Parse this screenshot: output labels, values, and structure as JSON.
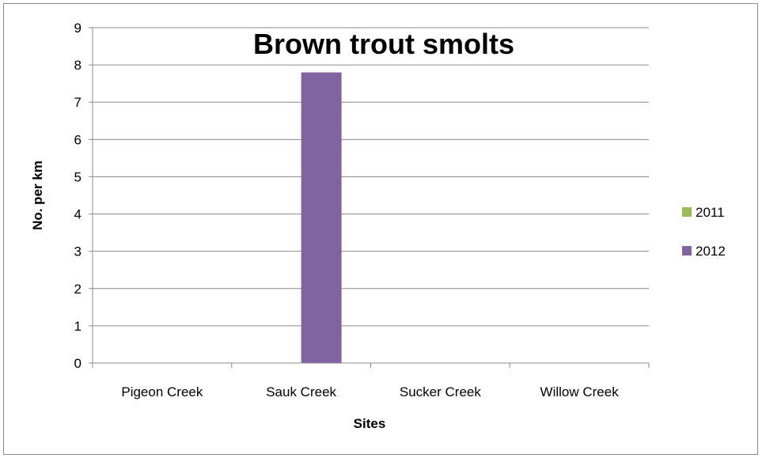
{
  "chart_data": {
    "type": "bar",
    "title": "Brown trout smolts",
    "xlabel": "Sites",
    "ylabel": "No. per km",
    "categories": [
      "Pigeon Creek",
      "Sauk Creek",
      "Sucker Creek",
      "Willow Creek"
    ],
    "series": [
      {
        "name": "2011",
        "values": [
          0,
          0,
          0,
          0
        ],
        "color": "#9bbb59"
      },
      {
        "name": "2012",
        "values": [
          0,
          7.8,
          0,
          0
        ],
        "color": "#8064a2"
      }
    ],
    "ylim": [
      0,
      9
    ],
    "yticks": [
      "0",
      "1",
      "2",
      "3",
      "4",
      "5",
      "6",
      "7",
      "8",
      "9"
    ],
    "grid": true,
    "legend_position": "right"
  }
}
